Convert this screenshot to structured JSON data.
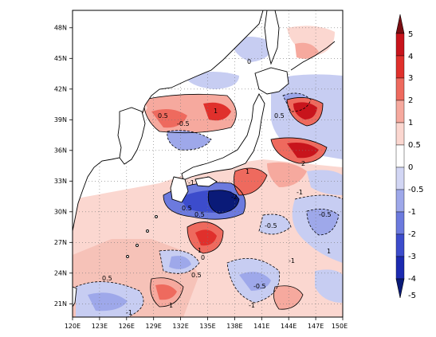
{
  "map": {
    "title": "",
    "lon_ticks": [
      "120E",
      "123E",
      "126E",
      "129E",
      "132E",
      "135E",
      "138E",
      "141E",
      "144E",
      "147E",
      "150E"
    ],
    "lat_ticks": [
      "48N",
      "45N",
      "42N",
      "39N",
      "36N",
      "33N",
      "30N",
      "27N",
      "24N",
      "21N"
    ],
    "lon_range": [
      120,
      150
    ],
    "lat_range": [
      20,
      50
    ],
    "grid": "dotted",
    "contour_labels": [
      "0",
      "-0.5",
      "0.5",
      "1",
      "-1",
      "0.5",
      "-0.5",
      "1",
      "-1",
      "2",
      "-2",
      "0.5",
      "-0.5",
      "0",
      "-1",
      "1",
      "0.5",
      "-0.5",
      "1",
      "-1",
      "0.5",
      "1",
      "-1",
      "0.5"
    ]
  },
  "colorbar": {
    "levels": [
      "5",
      "4",
      "3",
      "2",
      "1",
      "0.5",
      "0",
      "-0.5",
      "-1",
      "-2",
      "-3",
      "-4",
      "-5"
    ],
    "colors": [
      "#7a0d12",
      "#c8141c",
      "#e0302c",
      "#ee6a5e",
      "#f6a99e",
      "#fbd7d0",
      "#ffffff",
      "#d2d6f4",
      "#9ea8ea",
      "#6c7ade",
      "#3c4ccc",
      "#1c2ab0",
      "#0a1a78"
    ]
  }
}
